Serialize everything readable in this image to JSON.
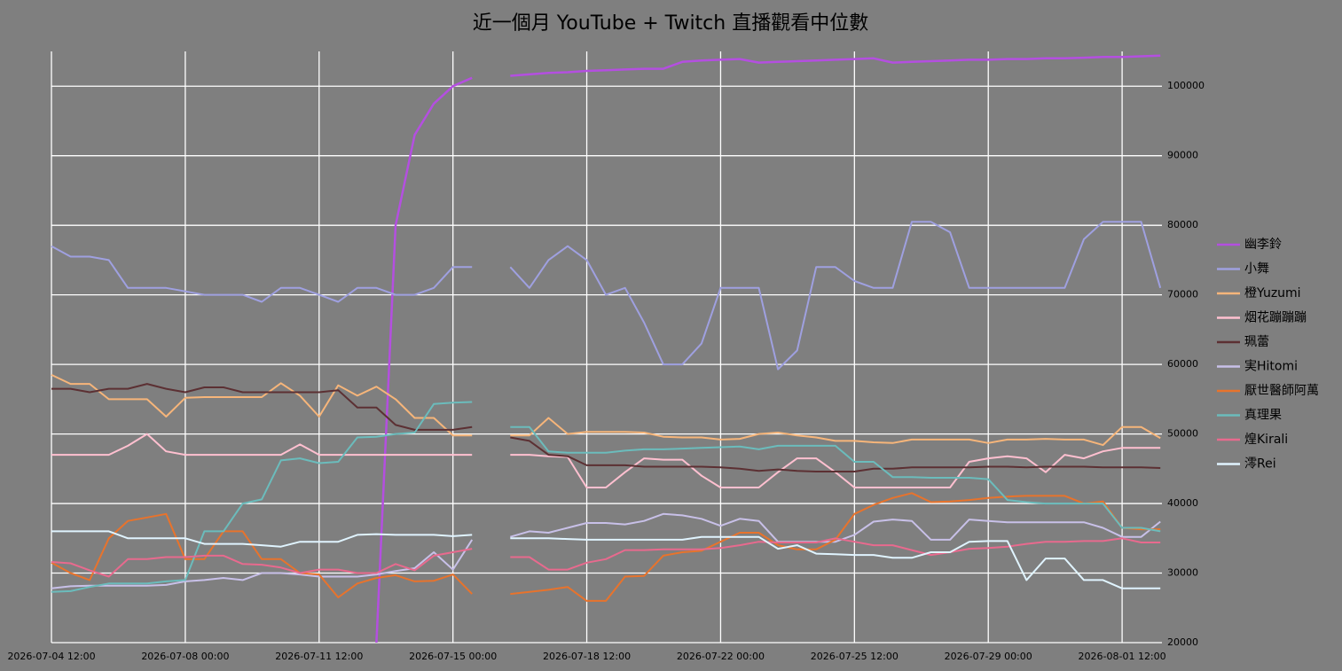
{
  "chart_data": {
    "type": "line",
    "title": "近一個月 YouTube + Twitch 直播觀看中位數",
    "x": [
      "2026-07-04 12:00",
      "2026-07-05 00:00",
      "2026-07-05 12:00",
      "2026-07-06 00:00",
      "2026-07-06 12:00",
      "2026-07-07 00:00",
      "2026-07-07 12:00",
      "2026-07-08 00:00",
      "2026-07-08 12:00",
      "2026-07-09 00:00",
      "2026-07-09 12:00",
      "2026-07-10 00:00",
      "2026-07-10 12:00",
      "2026-07-11 00:00",
      "2026-07-11 12:00",
      "2026-07-12 00:00",
      "2026-07-12 12:00",
      "2026-07-13 00:00",
      "2026-07-13 12:00",
      "2026-07-14 00:00",
      "2026-07-14 12:00",
      "2026-07-15 00:00",
      "2026-07-15 12:00",
      "2026-07-16 00:00",
      "2026-07-16 12:00",
      "2026-07-17 00:00",
      "2026-07-17 12:00",
      "2026-07-18 00:00",
      "2026-07-18 12:00",
      "2026-07-19 00:00",
      "2026-07-19 12:00",
      "2026-07-20 00:00",
      "2026-07-20 12:00",
      "2026-07-21 00:00",
      "2026-07-21 12:00",
      "2026-07-22 00:00",
      "2026-07-22 12:00",
      "2026-07-23 00:00",
      "2026-07-23 12:00",
      "2026-07-24 00:00",
      "2026-07-24 12:00",
      "2026-07-25 00:00",
      "2026-07-25 12:00",
      "2026-07-26 00:00",
      "2026-07-26 12:00",
      "2026-07-27 00:00",
      "2026-07-27 12:00",
      "2026-07-28 00:00",
      "2026-07-28 12:00",
      "2026-07-29 00:00",
      "2026-07-29 12:00",
      "2026-07-30 00:00",
      "2026-07-30 12:00",
      "2026-07-31 00:00",
      "2026-07-31 12:00",
      "2026-08-01 00:00",
      "2026-08-01 12:00",
      "2026-08-02 00:00",
      "2026-08-02 12:00"
    ],
    "xlim": [
      "2026-07-04 12:00",
      "2026-08-02 13:00"
    ],
    "xticks": [
      "2026-07-04 12:00",
      "2026-07-08 00:00",
      "2026-07-11 12:00",
      "2026-07-15 00:00",
      "2026-07-18 12:00",
      "2026-07-22 00:00",
      "2026-07-25 12:00",
      "2026-07-29 00:00",
      "2026-08-01 12:00"
    ],
    "ylim": [
      20000,
      105000
    ],
    "yticks": [
      20000,
      30000,
      40000,
      50000,
      60000,
      70000,
      80000,
      90000,
      100000
    ],
    "grid": true,
    "legend": "right",
    "series": [
      {
        "name": "幽李鈴",
        "color": "#b44fe0",
        "values": [
          null,
          null,
          null,
          null,
          null,
          null,
          null,
          null,
          null,
          null,
          null,
          null,
          null,
          null,
          null,
          null,
          null,
          20000,
          80000,
          93000,
          97500,
          100000,
          101200,
          null,
          101500,
          101700,
          101900,
          102000,
          102200,
          102300,
          102400,
          102500,
          102500,
          103500,
          103700,
          103800,
          103900,
          103400,
          103500,
          103600,
          103700,
          103800,
          103900,
          104000,
          103400,
          103500,
          103600,
          103700,
          103800,
          103800,
          103900,
          103900,
          104000,
          104000,
          104100,
          104200,
          104200,
          104300,
          104400
        ]
      },
      {
        "name": "小舞",
        "color": "#9fa0e0",
        "values": [
          77000,
          75500,
          75500,
          75000,
          71000,
          71000,
          71000,
          70500,
          70000,
          70000,
          70000,
          69000,
          71000,
          71000,
          70000,
          69000,
          71000,
          71000,
          70000,
          70000,
          71000,
          74000,
          74000,
          null,
          74000,
          71000,
          75000,
          77000,
          75000,
          70000,
          71000,
          66000,
          60000,
          60000,
          63000,
          71000,
          71000,
          71000,
          59300,
          62000,
          74000,
          74000,
          72000,
          71000,
          71000,
          80500,
          80500,
          79000,
          71000,
          71000,
          71000,
          71000,
          71000,
          71000,
          78000,
          80500,
          80500,
          80500,
          71000
        ]
      },
      {
        "name": "橙Yuzumi",
        "color": "#f6b57a",
        "values": [
          58500,
          57200,
          57200,
          55000,
          55000,
          55000,
          52500,
          55200,
          55300,
          55300,
          55300,
          55300,
          57300,
          55500,
          52500,
          57000,
          55500,
          56800,
          55000,
          52300,
          52300,
          49800,
          49800,
          null,
          49800,
          49800,
          52300,
          50000,
          50300,
          50300,
          50300,
          50200,
          49600,
          49500,
          49500,
          49200,
          49300,
          50000,
          50200,
          49800,
          49500,
          49000,
          49000,
          48800,
          48700,
          49200,
          49200,
          49200,
          49200,
          48700,
          49200,
          49200,
          49300,
          49200,
          49200,
          48400,
          51000,
          51000,
          49400
        ]
      },
      {
        "name": "烟花蹦蹦蹦",
        "color": "#ffc0d0",
        "values": [
          47000,
          47000,
          47000,
          47000,
          48300,
          50000,
          47500,
          47000,
          47000,
          47000,
          47000,
          47000,
          47000,
          48500,
          47000,
          47000,
          47000,
          47000,
          47000,
          47000,
          47000,
          47000,
          47000,
          null,
          47000,
          47000,
          46800,
          46700,
          42300,
          42300,
          44500,
          46500,
          46300,
          46300,
          44000,
          42300,
          42300,
          42300,
          44500,
          46500,
          46500,
          44500,
          42300,
          42300,
          42300,
          42300,
          42300,
          42300,
          46000,
          46500,
          46800,
          46500,
          44500,
          47000,
          46500,
          47500,
          48000,
          48000,
          48000
        ]
      },
      {
        "name": "珮蕾",
        "color": "#5c3033",
        "values": [
          56500,
          56500,
          56000,
          56500,
          56500,
          57200,
          56500,
          56000,
          56700,
          56700,
          56000,
          56000,
          56000,
          56000,
          56000,
          56300,
          53800,
          53800,
          51300,
          50600,
          50600,
          50600,
          51000,
          null,
          49500,
          49000,
          47000,
          46800,
          45500,
          45500,
          45500,
          45300,
          45300,
          45300,
          45300,
          45200,
          45000,
          44700,
          44900,
          44700,
          44600,
          44600,
          44600,
          45000,
          45000,
          45200,
          45200,
          45200,
          45200,
          45300,
          45300,
          45200,
          45300,
          45300,
          45300,
          45200,
          45200,
          45200,
          45100
        ]
      },
      {
        "name": "実Hitomi",
        "color": "#c8c0e8",
        "values": [
          27800,
          28100,
          28200,
          28200,
          28200,
          28200,
          28300,
          28800,
          29000,
          29300,
          29000,
          30000,
          30000,
          29800,
          29500,
          29500,
          29500,
          29800,
          30300,
          30700,
          33000,
          30500,
          34800,
          null,
          35200,
          36000,
          35800,
          36500,
          37200,
          37200,
          37000,
          37500,
          38500,
          38300,
          37800,
          36800,
          37800,
          37500,
          34500,
          34500,
          34500,
          34500,
          35500,
          37400,
          37700,
          37500,
          34800,
          34800,
          37700,
          37500,
          37300,
          37300,
          37300,
          37300,
          37300,
          36500,
          35200,
          35200,
          37400
        ]
      },
      {
        "name": "厭世醫師阿萬",
        "color": "#e8732c",
        "values": [
          31500,
          30000,
          29000,
          35000,
          37500,
          38000,
          38500,
          32000,
          32000,
          36000,
          36000,
          32000,
          32000,
          30000,
          29800,
          26500,
          28500,
          29300,
          29700,
          28800,
          28900,
          29800,
          27000,
          null,
          27000,
          27300,
          27600,
          28000,
          26000,
          26000,
          29500,
          29600,
          32500,
          33000,
          33200,
          34500,
          35800,
          35800,
          34000,
          33400,
          33400,
          34800,
          38500,
          39800,
          40800,
          41500,
          40200,
          40300,
          40500,
          40800,
          41000,
          41100,
          41100,
          41100,
          40000,
          40300,
          36500,
          36300,
          36300
        ]
      },
      {
        "name": "真理果",
        "color": "#6bbcbc",
        "values": [
          27300,
          27400,
          28000,
          28500,
          28500,
          28500,
          28800,
          29000,
          36000,
          36000,
          40000,
          40600,
          46200,
          46500,
          45800,
          46000,
          49500,
          49600,
          50000,
          50200,
          54300,
          54500,
          54600,
          null,
          51000,
          51000,
          47500,
          47300,
          47300,
          47300,
          47600,
          47800,
          47800,
          47900,
          48000,
          48100,
          48200,
          47800,
          48300,
          48300,
          48300,
          48300,
          46000,
          46000,
          43800,
          43800,
          43700,
          43700,
          43700,
          43500,
          40500,
          40200,
          40000,
          40000,
          40000,
          40000,
          36500,
          36500,
          36000
        ]
      },
      {
        "name": "煌Kirali",
        "color": "#e86a8e",
        "values": [
          31600,
          31400,
          30400,
          29500,
          32000,
          32000,
          32300,
          32300,
          32500,
          32500,
          31300,
          31200,
          30800,
          30000,
          30500,
          30500,
          30000,
          30000,
          31300,
          30400,
          32500,
          33000,
          33500,
          null,
          32300,
          32300,
          30500,
          30500,
          31500,
          32000,
          33300,
          33300,
          33400,
          33400,
          33400,
          33600,
          34000,
          34500,
          34400,
          34400,
          34400,
          35000,
          34500,
          34000,
          34000,
          33300,
          32600,
          33000,
          33500,
          33600,
          33800,
          34200,
          34500,
          34500,
          34600,
          34600,
          35000,
          34400,
          34400
        ]
      },
      {
        "name": "澪Rei",
        "color": "#e0f4ff",
        "values": [
          36000,
          36000,
          36000,
          36000,
          35000,
          35000,
          35000,
          35000,
          34200,
          34200,
          34200,
          34000,
          33800,
          34500,
          34500,
          34500,
          35500,
          35600,
          35500,
          35500,
          35500,
          35300,
          35500,
          null,
          35000,
          35000,
          35000,
          34900,
          34800,
          34800,
          34800,
          34800,
          34800,
          34800,
          35200,
          35200,
          35200,
          35200,
          33500,
          34000,
          32800,
          32700,
          32600,
          32600,
          32200,
          32200,
          33000,
          33000,
          34500,
          34600,
          34600,
          29000,
          32100,
          32100,
          29000,
          29000,
          27800,
          27800,
          27800
        ]
      }
    ]
  }
}
